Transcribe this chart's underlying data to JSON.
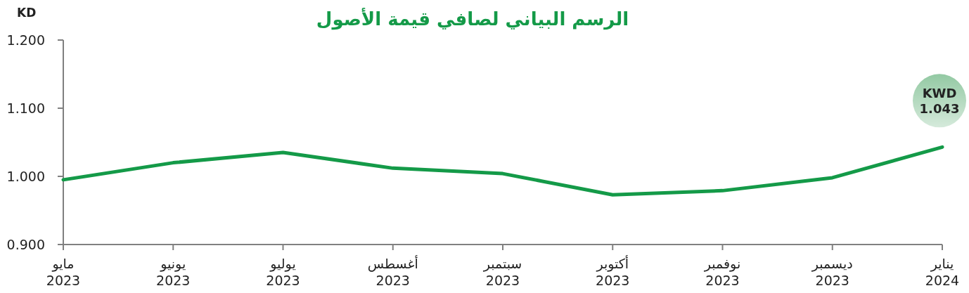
{
  "chart_data": {
    "type": "line",
    "title": "الرسم البياني لصافي قيمة الأصول",
    "ylabel": "KD",
    "categories": [
      "مايو\n2023",
      "يونيو\n2023",
      "يوليو\n2023",
      "أغسطس\n2023",
      "سبتمبر\n2023",
      "أكتوبر\n2023",
      "نوفمبر\n2023",
      "ديسمبر\n2023",
      "يناير\n2024"
    ],
    "series": [
      {
        "color": "#149a48",
        "values": [
          0.995,
          1.02,
          1.035,
          1.012,
          1.004,
          0.973,
          0.979,
          0.998,
          1.043
        ]
      }
    ],
    "ylim": [
      0.9,
      1.2
    ],
    "yticks": [
      {
        "value": 0.9,
        "label": "0.900"
      },
      {
        "value": 1.0,
        "label": "1.000"
      },
      {
        "value": 1.1,
        "label": "1.100"
      },
      {
        "value": 1.2,
        "label": "1.200"
      }
    ],
    "grid": false,
    "marker": "none",
    "line_style": "solid",
    "annotations": [
      {
        "text": "KWD\n1.043",
        "x": "يناير\n2024",
        "y": 1.043
      }
    ]
  }
}
